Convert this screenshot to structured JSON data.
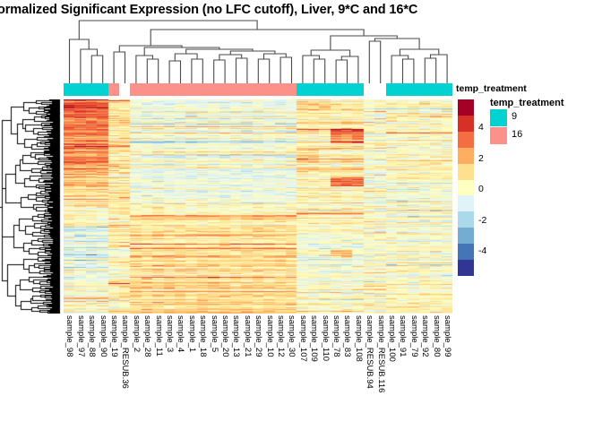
{
  "title": "ormalized Significant Expression (no LFC cutoff), Liver, 9*C and 16*C",
  "annotation_label": "temp_treatment",
  "legend": {
    "ticks": [
      {
        "label": "4",
        "value": 4
      },
      {
        "label": "2",
        "value": 2
      },
      {
        "label": "0",
        "value": 0
      },
      {
        "label": "-2",
        "value": -2
      },
      {
        "label": "-4",
        "value": -4
      }
    ]
  },
  "annotation_legend": {
    "title": "temp_treatment",
    "items": [
      {
        "label": "9",
        "color": "#00D2D2"
      },
      {
        "label": "16",
        "color": "#FB9189"
      }
    ]
  },
  "colors": {
    "anno_9": "#00D2D2",
    "anno_16": "#FB9189",
    "anno_na": "#FFFFFF",
    "dendrogram": "#4a4a4a",
    "row_dendrogram": "#000000",
    "palette_high_to_low": [
      "#a50026",
      "#d73027",
      "#f46d43",
      "#fdae61",
      "#fee090",
      "#ffffbf",
      "#e0f3f8",
      "#abd9e9",
      "#74add1",
      "#4575b4",
      "#313695"
    ]
  },
  "chart_data": {
    "type": "heatmap",
    "title": "ormalized Significant Expression (no LFC cutoff), Liver, 9*C and 16*C",
    "legend_title": "temp_treatment",
    "scale_ticks": [
      4,
      2,
      0,
      -2,
      -4
    ],
    "scale_range": [
      -5.7,
      5.8
    ],
    "n_rows": 239,
    "columns": [
      "sample_98",
      "sample_97",
      "sample_88",
      "sample_90",
      "sample_19",
      "sample_RESUB.36",
      "sample_2",
      "sample_28",
      "sample_11",
      "sample_3",
      "sample_4",
      "sample_1",
      "sample_18",
      "sample_5",
      "sample_20",
      "sample_13",
      "sample_21",
      "sample_29",
      "sample_10",
      "sample_12",
      "sample_30",
      "sample_107",
      "sample_109",
      "sample_110",
      "sample_78",
      "sample_83",
      "sample_108",
      "sample_RESUB.94",
      "sample_RESUB.116",
      "sample_100",
      "sample_91",
      "sample_79",
      "sample_92",
      "sample_80",
      "sample_99"
    ],
    "column_annotation": {
      "name": "temp_treatment",
      "values": [
        "9",
        "9",
        "9",
        "9",
        "16",
        null,
        "16",
        "16",
        "16",
        "16",
        "16",
        "16",
        "16",
        "16",
        "16",
        "16",
        "16",
        "16",
        "16",
        "16",
        "16",
        "9",
        "9",
        "9",
        "9",
        "9",
        "9",
        null,
        null,
        "9",
        "9",
        "9",
        "9",
        "9",
        "9"
      ]
    },
    "column_groups": [
      [
        0,
        3
      ],
      [
        4,
        5
      ],
      [
        6,
        20
      ],
      [
        21,
        26
      ],
      [
        27,
        28
      ],
      [
        29,
        34
      ]
    ],
    "band_rows": 20,
    "band_means": [
      [
        3.6,
        1.2,
        -0.4,
        0.7,
        -0.2,
        0.1
      ],
      [
        3.3,
        1.0,
        -0.5,
        0.6,
        -0.3,
        0.2
      ],
      [
        2.7,
        1.4,
        -0.5,
        0.5,
        -0.2,
        0.1
      ],
      [
        2.2,
        0.9,
        -0.4,
        0.8,
        -0.1,
        0.2
      ],
      [
        1.6,
        0.7,
        -0.4,
        0.6,
        -0.4,
        0.1
      ],
      [
        0.9,
        0.5,
        -0.2,
        0.3,
        -0.2,
        0.0
      ],
      [
        0.2,
        0.5,
        0.5,
        0.4,
        -0.1,
        0.1
      ],
      [
        -0.7,
        0.4,
        1.0,
        -0.2,
        -0.2,
        -0.1
      ],
      [
        -1.1,
        0.3,
        1.2,
        -0.4,
        -0.1,
        0.0
      ],
      [
        -0.8,
        0.4,
        1.2,
        -0.3,
        0.0,
        0.1
      ],
      [
        -0.4,
        0.5,
        1.1,
        -0.1,
        0.1,
        0.2
      ],
      [
        0.1,
        0.5,
        0.9,
        0.2,
        0.1,
        0.2
      ]
    ],
    "hotspots": [
      {
        "rows": [
          33,
          48
        ],
        "cols": [
          24,
          26
        ],
        "add": 2.6
      },
      {
        "rows": [
          86,
          96
        ],
        "cols": [
          24,
          26
        ],
        "add": 2.9
      },
      {
        "rows": [
          168,
          176
        ],
        "cols": [
          24,
          25
        ],
        "add": 2.0
      },
      {
        "rows": [
          0,
          12
        ],
        "cols": [
          21,
          23
        ],
        "add": 0.7
      },
      {
        "rows": [
          55,
          72
        ],
        "cols": [
          21,
          22
        ],
        "add": 1.0
      }
    ],
    "noise": {
      "row_sigma": 0.75,
      "cell_sigma": 0.5,
      "row_outlier_prob": 0.06,
      "row_outlier_boost": 1.9
    },
    "seed": 7,
    "row_dendro_seed": 13,
    "col_dendrogram": [
      [
        0,
        [
          1,
          [
            2,
            3,
            62
          ],
          55
        ],
        44
      ],
      [
        [
          [
            4,
            5,
            58
          ],
          [
            [
              6,
              [
                7,
                8,
                66
              ],
              62
            ],
            [
              [
                [
                  9,
                  10,
                  68
                ],
                [
                  11,
                  12,
                  66
                ],
                60
              ],
              [
                [
                  [
                    13,
                    14,
                    67
                  ],
                  [
                    15,
                    16,
                    65
                  ],
                  61
                ],
                [
                  [
                    17,
                    18,
                    66
                  ],
                  [
                    19,
                    20,
                    64
                  ],
                  60
                ],
                57
              ],
              55
            ],
            53
          ],
          51
        ],
        [
          [
            [
              21,
              [
                22,
                23,
                66
              ],
              62
            ],
            [
              [
                24,
                25,
                67
              ],
              26,
              63
            ],
            56
          ],
          [
            [
              27,
              28,
              46
            ],
            [
              [
                29,
                [
                  30,
                  31,
                  66
                ],
                62
              ],
              [
                [
                  32,
                  33,
                  65
                ],
                34,
                61
              ],
              55
            ],
            43
          ],
          40
        ],
        33
      ],
      23
    ]
  }
}
